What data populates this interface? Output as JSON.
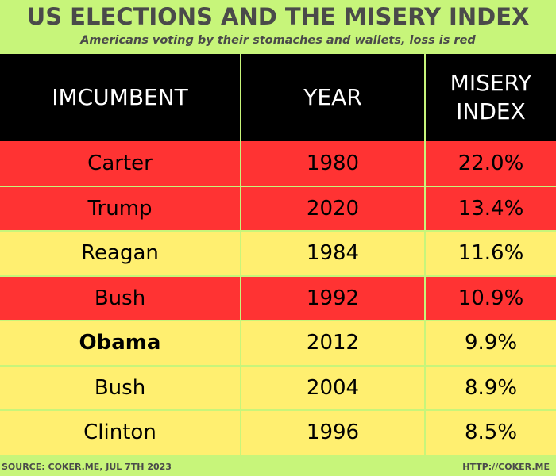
{
  "title": "US ELECTIONS AND THE MISERY INDEX",
  "subtitle": "Americans voting by their stomaches and wallets, loss is red",
  "footer": {
    "source": "SOURCE: COKER.ME,  JUL 7TH 2023",
    "url": "HTTP://COKER.ME"
  },
  "colors": {
    "background": "#c7f57a",
    "header": "#000000",
    "loss": "#ff3333",
    "win": "#ffef70"
  },
  "chart_data": {
    "type": "table",
    "title": "US ELECTIONS AND THE MISERY INDEX",
    "subtitle": "Americans voting by their stomaches and wallets, loss is red",
    "columns": [
      "IMCUMBENT",
      "YEAR",
      "MISERY INDEX"
    ],
    "rows": [
      {
        "incumbent": "Carter",
        "year": "1980",
        "misery_index": "22.0%",
        "outcome": "loss",
        "bold_name": false
      },
      {
        "incumbent": "Trump",
        "year": "2020",
        "misery_index": "13.4%",
        "outcome": "loss",
        "bold_name": false
      },
      {
        "incumbent": "Reagan",
        "year": "1984",
        "misery_index": "11.6%",
        "outcome": "win",
        "bold_name": false
      },
      {
        "incumbent": "Bush",
        "year": "1992",
        "misery_index": "10.9%",
        "outcome": "loss",
        "bold_name": false
      },
      {
        "incumbent": "Obama",
        "year": "2012",
        "misery_index": "9.9%",
        "outcome": "win",
        "bold_name": true
      },
      {
        "incumbent": "Bush",
        "year": "2004",
        "misery_index": "8.9%",
        "outcome": "win",
        "bold_name": false
      },
      {
        "incumbent": "Clinton",
        "year": "1996",
        "misery_index": "8.5%",
        "outcome": "win",
        "bold_name": false
      }
    ]
  }
}
